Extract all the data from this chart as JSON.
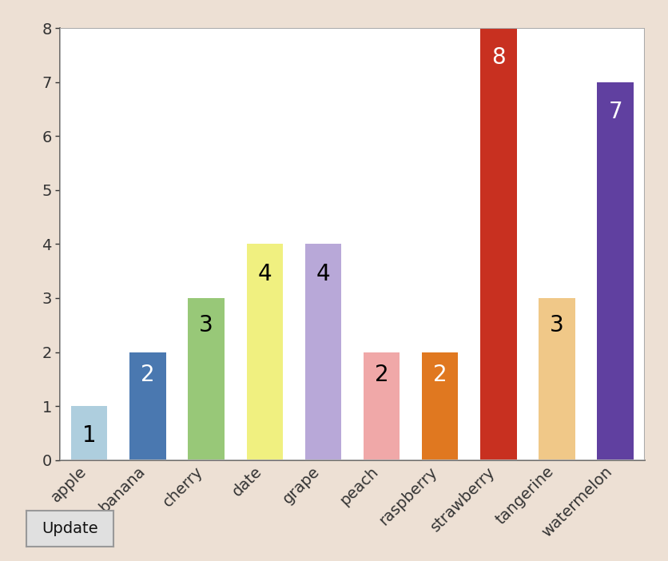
{
  "categories": [
    "apple",
    "banana",
    "cherry",
    "date",
    "grape",
    "peach",
    "raspberry",
    "strawberry",
    "tangerine",
    "watermelon"
  ],
  "values": [
    1,
    2,
    3,
    4,
    4,
    2,
    2,
    8,
    3,
    7
  ],
  "bar_colors": [
    "#aecede",
    "#4a78b0",
    "#98c878",
    "#f0f080",
    "#b8a8d8",
    "#f0a8a8",
    "#e07820",
    "#c83020",
    "#f0c888",
    "#6040a0"
  ],
  "label_colors": [
    "#000000",
    "#ffffff",
    "#000000",
    "#000000",
    "#000000",
    "#000000",
    "#ffffff",
    "#ffffff",
    "#000000",
    "#ffffff"
  ],
  "ylim": [
    0,
    8
  ],
  "yticks": [
    0,
    1,
    2,
    3,
    4,
    5,
    6,
    7,
    8
  ],
  "background_color": "#ffffff",
  "outer_background": "#ede0d4",
  "label_fontsize": 20,
  "tick_fontsize": 14,
  "bar_width": 0.62,
  "button_text": "Update"
}
